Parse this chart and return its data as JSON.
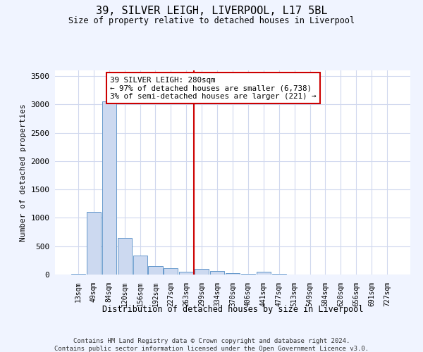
{
  "title": "39, SILVER LEIGH, LIVERPOOL, L17 5BL",
  "subtitle": "Size of property relative to detached houses in Liverpool",
  "xlabel": "Distribution of detached houses by size in Liverpool",
  "ylabel": "Number of detached properties",
  "bar_labels": [
    "13sqm",
    "49sqm",
    "84sqm",
    "120sqm",
    "156sqm",
    "192sqm",
    "227sqm",
    "263sqm",
    "299sqm",
    "334sqm",
    "370sqm",
    "406sqm",
    "441sqm",
    "477sqm",
    "513sqm",
    "549sqm",
    "584sqm",
    "620sqm",
    "656sqm",
    "691sqm",
    "727sqm"
  ],
  "bar_values": [
    18,
    1100,
    3050,
    650,
    330,
    155,
    115,
    55,
    100,
    65,
    30,
    15,
    50,
    8,
    2,
    0,
    0,
    0,
    0,
    0,
    5
  ],
  "bar_color": "#ccd9f0",
  "bar_edge_color": "#6699cc",
  "vline_x": 7.5,
  "vline_color": "#cc0000",
  "annotation_text": "39 SILVER LEIGH: 280sqm\n← 97% of detached houses are smaller (6,738)\n3% of semi-detached houses are larger (221) →",
  "annotation_box_color": "#ffffff",
  "annotation_box_edge": "#cc0000",
  "ylim": [
    0,
    3600
  ],
  "yticks": [
    0,
    500,
    1000,
    1500,
    2000,
    2500,
    3000,
    3500
  ],
  "footer_line1": "Contains HM Land Registry data © Crown copyright and database right 2024.",
  "footer_line2": "Contains public sector information licensed under the Open Government Licence v3.0.",
  "bg_color": "#f0f4ff",
  "plot_bg_color": "#ffffff",
  "grid_color": "#d0d8ee"
}
